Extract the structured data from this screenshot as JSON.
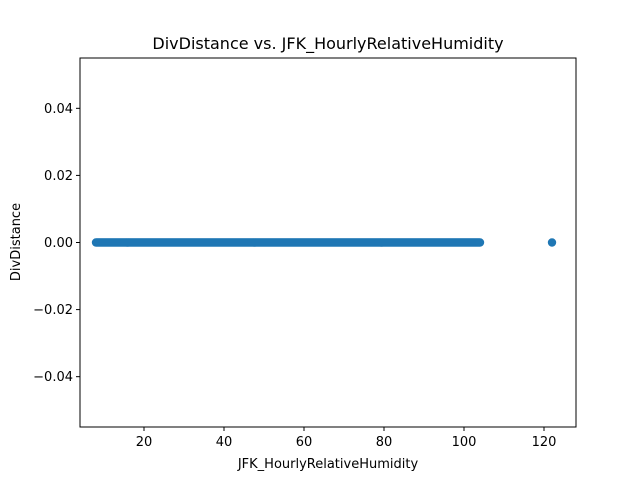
{
  "chart_data": {
    "type": "scatter",
    "title": "DivDistance vs. JFK_HourlyRelativeHumidity",
    "xlabel": "JFK_HourlyRelativeHumidity",
    "ylabel": "DivDistance",
    "xlim": [
      4,
      128
    ],
    "ylim": [
      -0.055,
      0.055
    ],
    "x_ticks": [
      20,
      40,
      60,
      80,
      100,
      120
    ],
    "y_ticks": [
      -0.04,
      -0.02,
      0.0,
      0.02,
      0.04
    ],
    "x_tick_labels": [
      "20",
      "40",
      "60",
      "80",
      "100",
      "120"
    ],
    "y_tick_labels": [
      "−0.04",
      "−0.02",
      "0.00",
      "0.02",
      "0.04"
    ],
    "point_color": "#1f77b4",
    "grid": false,
    "series": [
      {
        "x_range": [
          8,
          104
        ],
        "y": 0.0
      },
      {
        "points": [
          {
            "x": 122,
            "y": 0.0
          }
        ]
      }
    ]
  }
}
